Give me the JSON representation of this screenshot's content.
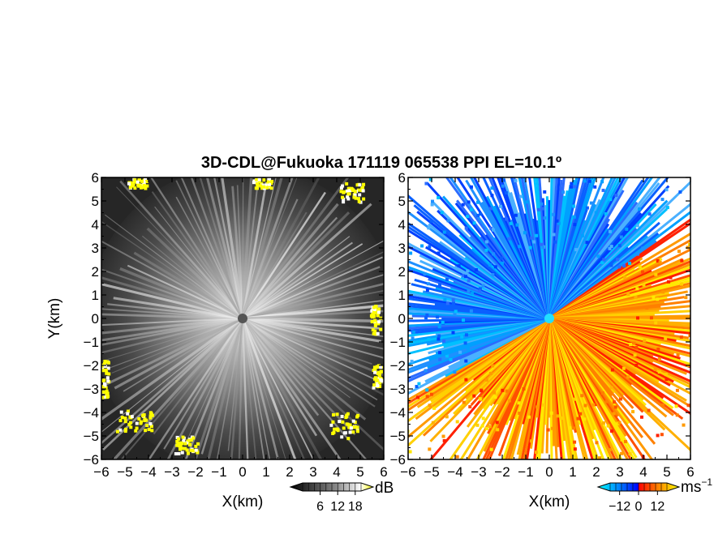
{
  "chart_data": [
    {
      "type": "heatmap",
      "title": "3D-CDL@Fukuoka 171119 065538 PPI EL=10.1º",
      "xlabel": "X(km)",
      "ylabel": "Y(km)",
      "xlim": [
        -6,
        6
      ],
      "ylim": [
        -6,
        6
      ],
      "x_ticks": [
        -6,
        -5,
        -4,
        -3,
        -2,
        -1,
        0,
        1,
        2,
        3,
        4,
        5,
        6
      ],
      "y_ticks": [
        -6,
        -5,
        -4,
        -3,
        -2,
        -1,
        0,
        1,
        2,
        3,
        4,
        5,
        6
      ],
      "grid": false,
      "colorbar": {
        "unit": "dB",
        "ticks": [
          6,
          12,
          18
        ],
        "range": [
          0,
          20
        ],
        "colors": [
          "#000000",
          "#ffffff",
          "#ffff00"
        ],
        "extend": "both",
        "placement": "bottom-right"
      }
    },
    {
      "type": "heatmap",
      "xlabel": "X(km)",
      "ylabel": "",
      "xlim": [
        -6,
        6
      ],
      "ylim": [
        -6,
        6
      ],
      "x_ticks": [
        -6,
        -5,
        -4,
        -3,
        -2,
        -1,
        0,
        1,
        2,
        3,
        4,
        5,
        6
      ],
      "y_ticks": [
        -6,
        -5,
        -4,
        -3,
        -2,
        -1,
        0,
        1,
        2,
        3,
        4,
        5,
        6
      ],
      "grid": false,
      "colorbar": {
        "unit": "ms",
        "unit_exponent": "−1",
        "ticks": [
          "−12",
          "0",
          "12"
        ],
        "range": [
          -18,
          18
        ],
        "colors": [
          "#00ffff",
          "#0066ff",
          "#0000ff",
          "#ff0000",
          "#ff8800",
          "#ffff00"
        ],
        "extend": "both",
        "placement": "bottom-right"
      }
    }
  ]
}
